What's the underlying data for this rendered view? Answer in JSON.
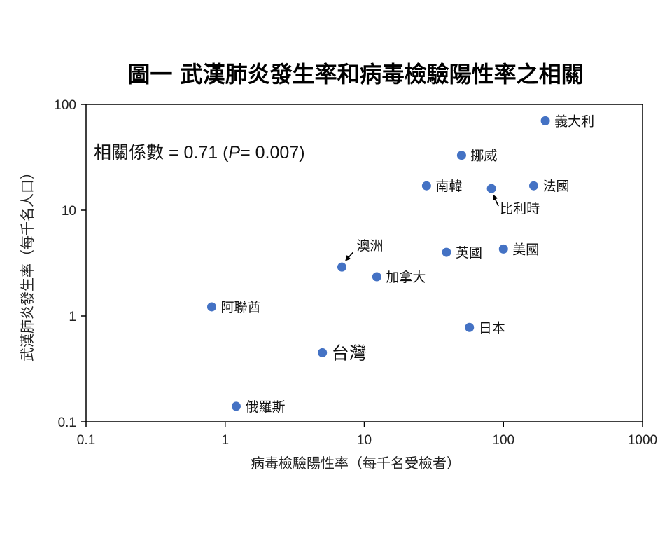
{
  "chart_data": {
    "type": "scatter",
    "title": "圖一  武漢肺炎發生率和病毒檢驗陽性率之相關",
    "xlabel": "病毒檢驗陽性率（每千名受檢者）",
    "ylabel": "武漢肺炎發生率（每千名人口）",
    "xscale": "log",
    "yscale": "log",
    "xlim": [
      0.1,
      1000
    ],
    "ylim": [
      0.1,
      100
    ],
    "xticks": [
      "0.1",
      "1",
      "10",
      "100",
      "1000"
    ],
    "yticks": [
      "0.1",
      "1",
      "10",
      "100"
    ],
    "point_color": "#4472C4",
    "annotation": {
      "prefix": "相關係數 = 0.71 (",
      "italic": "P",
      "suffix": "= 0.007)"
    },
    "points": [
      {
        "label": "義大利",
        "x": 200,
        "y": 70
      },
      {
        "label": "挪威",
        "x": 50,
        "y": 33
      },
      {
        "label": "南韓",
        "x": 28,
        "y": 17
      },
      {
        "label": "比利時",
        "x": 82,
        "y": 16,
        "arrow": true
      },
      {
        "label": "法國",
        "x": 165,
        "y": 17
      },
      {
        "label": "澳洲",
        "x": 6.9,
        "y": 2.9,
        "arrow": true
      },
      {
        "label": "英國",
        "x": 39,
        "y": 4.0
      },
      {
        "label": "美國",
        "x": 100,
        "y": 4.3
      },
      {
        "label": "加拿大",
        "x": 12.3,
        "y": 2.35
      },
      {
        "label": "阿聯酋",
        "x": 0.8,
        "y": 1.22
      },
      {
        "label": "日本",
        "x": 57,
        "y": 0.78
      },
      {
        "label": "台灣",
        "x": 5.0,
        "y": 0.45,
        "emphasis": true
      },
      {
        "label": "俄羅斯",
        "x": 1.2,
        "y": 0.14
      }
    ]
  }
}
